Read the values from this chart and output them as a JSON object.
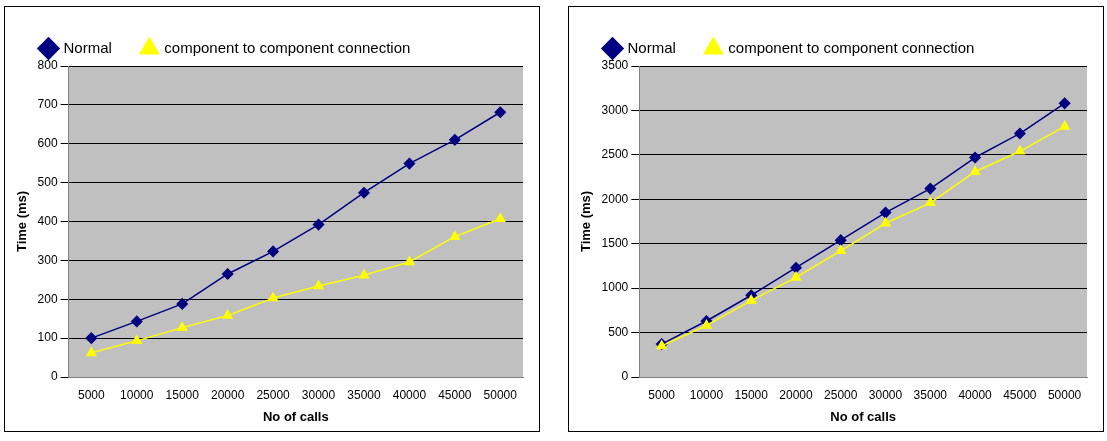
{
  "chart_data": [
    {
      "type": "line",
      "xlabel": "No of calls",
      "ylabel": "Time (ms)",
      "categories": [
        "5000",
        "10000",
        "15000",
        "20000",
        "25000",
        "30000",
        "35000",
        "40000",
        "45000",
        "50000"
      ],
      "series": [
        {
          "name": "Normal",
          "color": "#000080",
          "marker": "diamond",
          "values": [
            100,
            143,
            188,
            265,
            323,
            392,
            474,
            549,
            610,
            681
          ]
        },
        {
          "name": "component to component connection",
          "color": "#ffff00",
          "marker": "triangle",
          "values": [
            62,
            93,
            127,
            158,
            203,
            234,
            262,
            296,
            361,
            407
          ]
        }
      ],
      "ylim": [
        0,
        800
      ],
      "yticks": [
        0,
        100,
        200,
        300,
        400,
        500,
        600,
        700,
        800
      ],
      "grid": "y",
      "legend": "top"
    },
    {
      "type": "line",
      "xlabel": "No of calls",
      "ylabel": "Time (ms)",
      "categories": [
        "5000",
        "10000",
        "15000",
        "20000",
        "25000",
        "30000",
        "35000",
        "40000",
        "45000",
        "50000"
      ],
      "series": [
        {
          "name": "Normal",
          "color": "#000080",
          "marker": "diamond",
          "values": [
            370,
            630,
            920,
            1230,
            1540,
            1850,
            2120,
            2470,
            2740,
            3080
          ]
        },
        {
          "name": "component to component connection",
          "color": "#ffff00",
          "marker": "triangle",
          "values": [
            350,
            580,
            860,
            1120,
            1420,
            1730,
            1960,
            2310,
            2540,
            2820
          ]
        }
      ],
      "ylim": [
        0,
        3500
      ],
      "yticks": [
        0,
        500,
        1000,
        1500,
        2000,
        2500,
        3000,
        3500
      ],
      "grid": "y",
      "legend": "top"
    }
  ]
}
